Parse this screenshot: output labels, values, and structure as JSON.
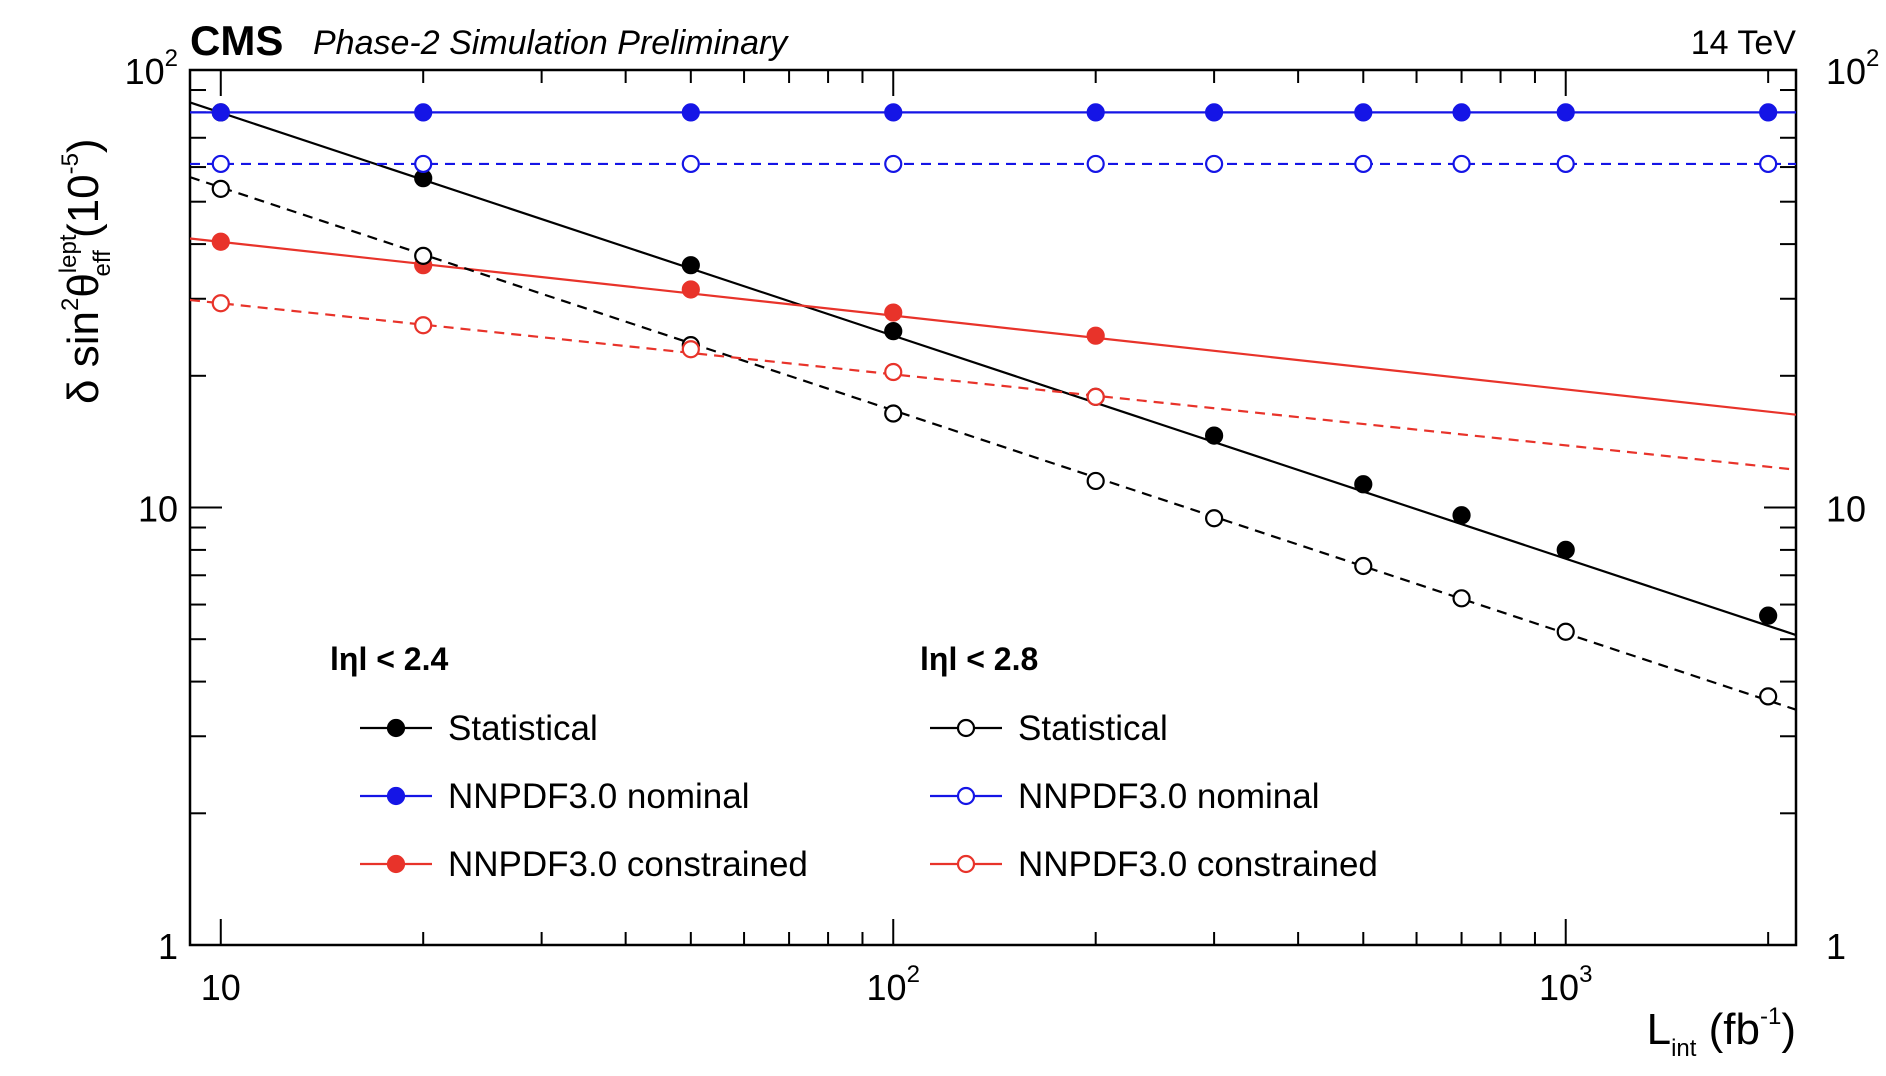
{
  "chart_data": {
    "type": "line",
    "header": {
      "cms": "CMS",
      "subtitle": "Phase-2 Simulation Preliminary",
      "energy": "14 TeV"
    },
    "xaxis": {
      "label_main": "L",
      "label_sub": "int",
      "label_unit_open": " (fb",
      "label_unit_sup": "-1",
      "label_unit_close": ")",
      "scale": "log",
      "range": [
        9,
        2200
      ],
      "ticks": [
        {
          "value": 10,
          "base": "10",
          "exp": ""
        },
        {
          "value": 100,
          "base": "10",
          "exp": "2"
        },
        {
          "value": 1000,
          "base": "10",
          "exp": "3"
        }
      ]
    },
    "yaxis": {
      "label_delta": "δ sin",
      "label_sq": "2",
      "label_theta": "θ",
      "label_sup": "lept",
      "label_sub": "eff",
      "label_unit_open": " (10",
      "label_unit_sup": "-5",
      "label_unit_close": ")",
      "scale": "log",
      "range": [
        1,
        100
      ],
      "ticks": [
        {
          "value": 1,
          "base": "1",
          "exp": ""
        },
        {
          "value": 10,
          "base": "10",
          "exp": ""
        },
        {
          "value": 100,
          "base": "10",
          "exp": "2"
        }
      ]
    },
    "legend_headers": [
      "lηl < 2.4",
      "lηl < 2.8"
    ],
    "series": [
      {
        "name": "Statistical",
        "group": 0,
        "color": "#000000",
        "marker": "filled",
        "dash": false,
        "line": [
          [
            9,
            84.3
          ],
          [
            2200,
            5.11
          ]
        ],
        "x": [
          10,
          20,
          50,
          100,
          200,
          300,
          500,
          700,
          1000,
          2000
        ],
        "y": [
          80,
          56.6,
          35.8,
          25.3,
          17.9,
          14.6,
          11.3,
          9.6,
          8.0,
          5.66
        ]
      },
      {
        "name": "NNPDF3.0 nominal",
        "group": 0,
        "color": "#1515e6",
        "marker": "filled",
        "dash": false,
        "line": [
          [
            9,
            80
          ],
          [
            2200,
            80
          ]
        ],
        "x": [
          10,
          20,
          50,
          100,
          200,
          300,
          500,
          700,
          1000,
          2000
        ],
        "y": [
          80,
          80,
          80,
          80,
          80,
          80,
          80,
          80,
          80,
          80
        ]
      },
      {
        "name": "NNPDF3.0 constrained",
        "group": 0,
        "color": "#e8332a",
        "marker": "filled",
        "dash": false,
        "line": [
          [
            9,
            41.2
          ],
          [
            2200,
            16.3
          ]
        ],
        "x": [
          10,
          20,
          50,
          100,
          200
        ],
        "y": [
          40.5,
          35.8,
          31.5,
          27.9,
          24.7
        ]
      },
      {
        "name": "Statistical",
        "group": 1,
        "color": "#000000",
        "marker": "open",
        "dash": true,
        "line": [
          [
            9,
            56.9
          ],
          [
            2200,
            3.45
          ]
        ],
        "x": [
          10,
          20,
          50,
          100,
          200,
          300,
          500,
          700,
          1000,
          2000
        ],
        "y": [
          53.5,
          37.6,
          23.5,
          16.4,
          11.5,
          9.45,
          7.35,
          6.2,
          5.2,
          3.7
        ]
      },
      {
        "name": "NNPDF3.0 nominal",
        "group": 1,
        "color": "#1515e6",
        "marker": "open",
        "dash": true,
        "line": [
          [
            9,
            61
          ],
          [
            2200,
            61
          ]
        ],
        "x": [
          10,
          20,
          50,
          100,
          200,
          300,
          500,
          700,
          1000,
          2000
        ],
        "y": [
          61,
          61,
          61,
          61,
          61,
          61,
          61,
          61,
          61,
          61
        ]
      },
      {
        "name": "NNPDF3.0 constrained",
        "group": 1,
        "color": "#e8332a",
        "marker": "open",
        "dash": true,
        "line": [
          [
            9,
            29.8
          ],
          [
            2200,
            12.2
          ]
        ],
        "x": [
          10,
          20,
          50,
          100,
          200
        ],
        "y": [
          29.3,
          26.1,
          23.0,
          20.4,
          17.9
        ]
      }
    ]
  }
}
